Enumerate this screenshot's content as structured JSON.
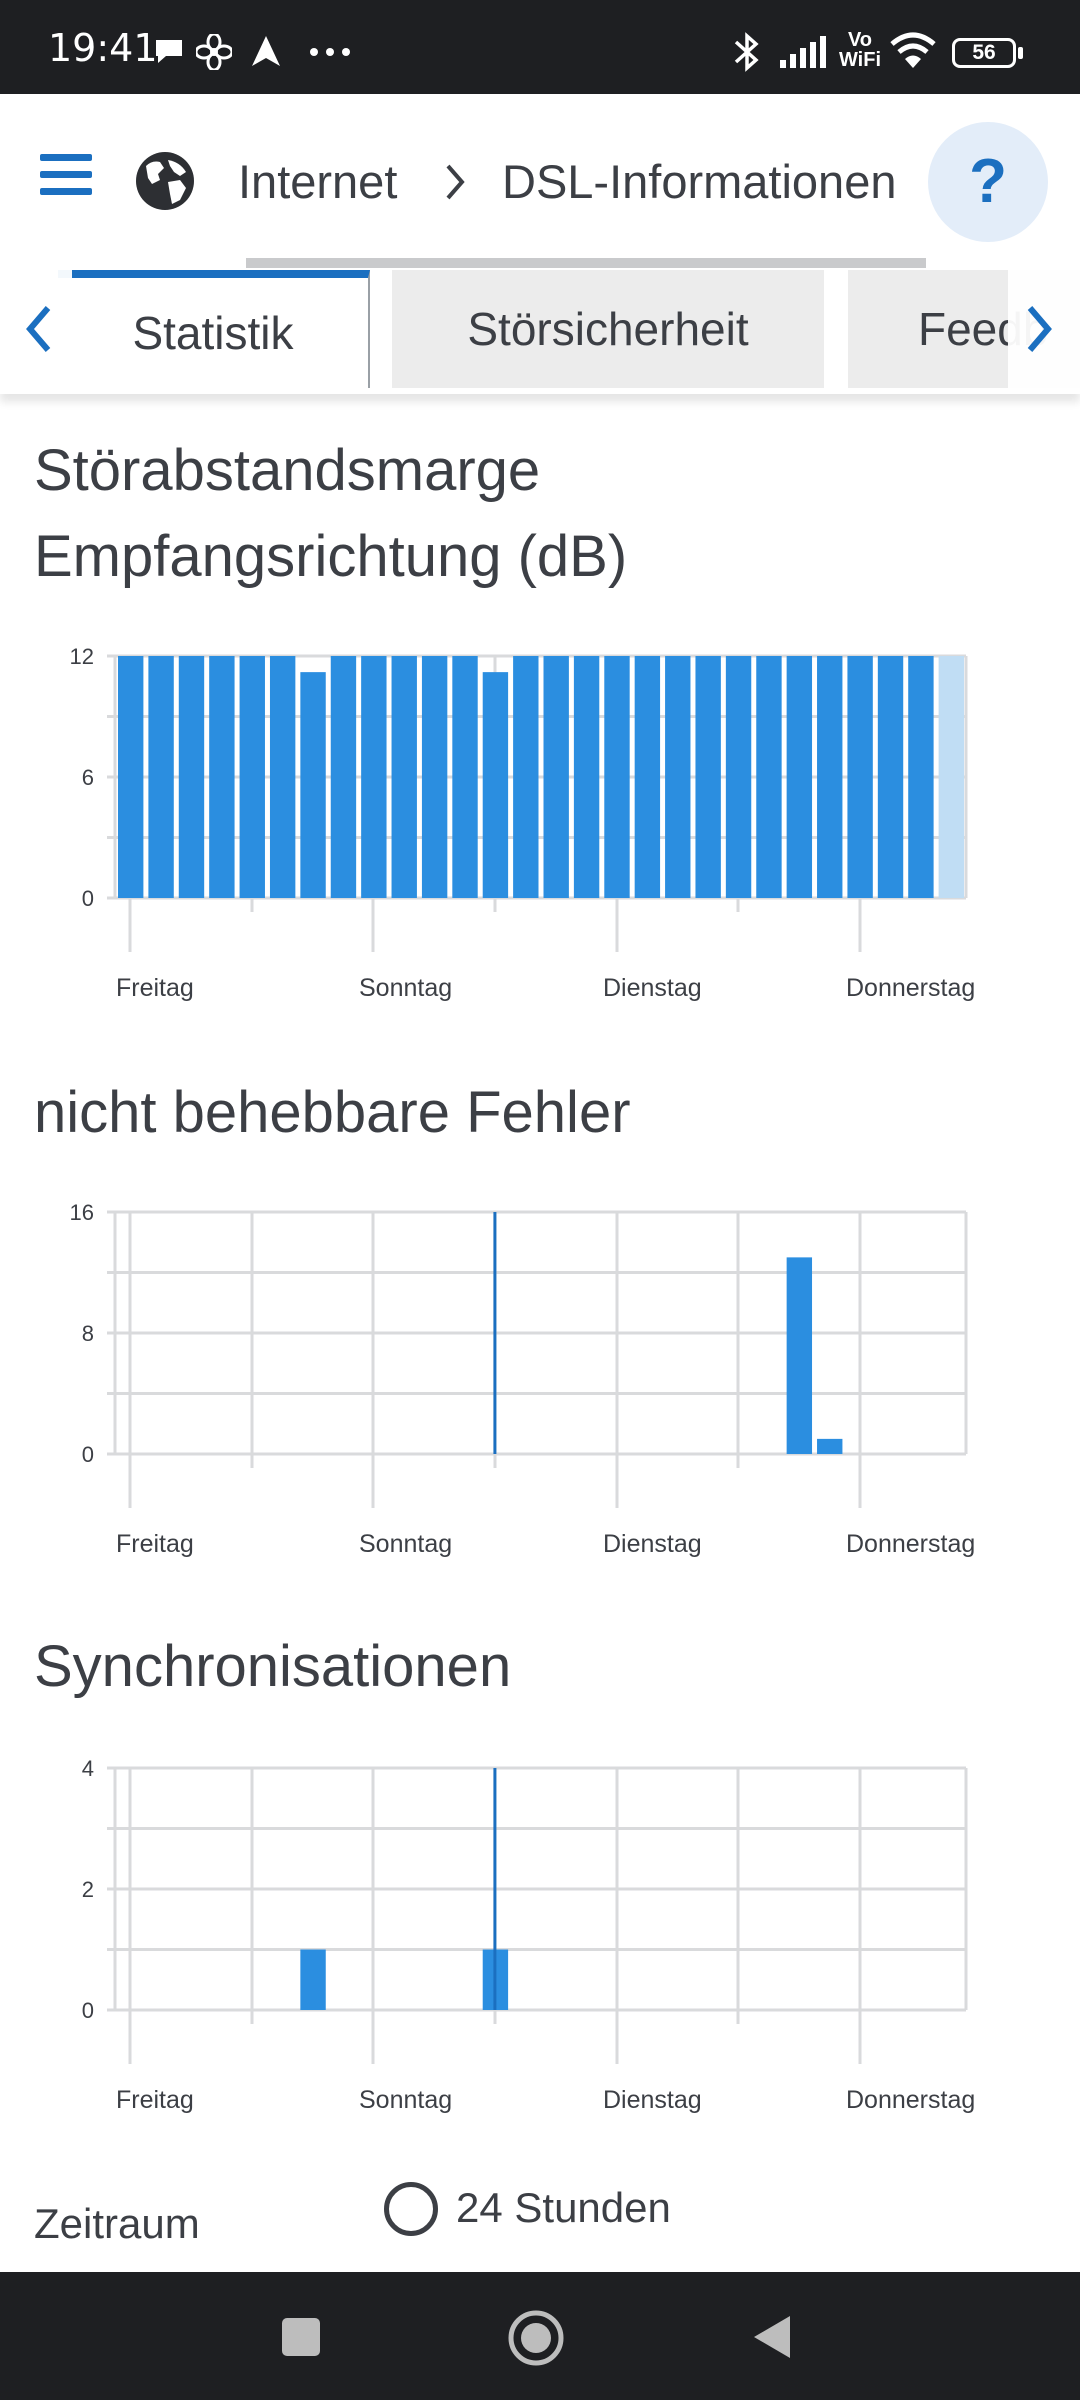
{
  "status_bar": {
    "time": "19:41",
    "battery": "56",
    "network_label_top": "Vo",
    "network_label_bottom": "WiFi"
  },
  "header": {
    "breadcrumb": [
      "Internet",
      "DSL-Informationen"
    ],
    "help_label": "?"
  },
  "tabs": [
    {
      "label": "Statistik",
      "active": true
    },
    {
      "label": "Störsicherheit",
      "active": false
    },
    {
      "label": "Feedb",
      "active": false
    }
  ],
  "charts": [
    {
      "title": "Störabstandsmarge Empfangsrichtung (dB)",
      "y_ticks": [
        "12",
        "6",
        "0"
      ],
      "x_ticks": [
        "Freitag",
        "Sonntag",
        "Dienstag",
        "Donnerstag"
      ]
    },
    {
      "title": "nicht behebbare Fehler",
      "y_ticks": [
        "16",
        "8",
        "0"
      ],
      "x_ticks": [
        "Freitag",
        "Sonntag",
        "Dienstag",
        "Donnerstag"
      ]
    },
    {
      "title": "Synchronisationen",
      "y_ticks": [
        "4",
        "2",
        "0"
      ],
      "x_ticks": [
        "Freitag",
        "Sonntag",
        "Dienstag",
        "Donnerstag"
      ]
    }
  ],
  "chart_data": [
    {
      "type": "bar",
      "title": "Störabstandsmarge Empfangsrichtung (dB)",
      "ylim": [
        0,
        12
      ],
      "x_tick_labels": [
        "Freitag",
        "Sonntag",
        "Dienstag",
        "Donnerstag"
      ],
      "values": [
        12,
        12,
        12,
        12,
        12,
        12,
        11.2,
        12,
        12,
        12,
        12,
        12,
        11.2,
        12,
        12,
        12,
        12,
        12,
        12,
        12,
        12,
        12,
        12,
        12,
        12,
        12,
        12,
        12
      ],
      "highlight_last": true,
      "color": "#2b8ee0",
      "highlight_color": "#c0ddf4"
    },
    {
      "type": "bar",
      "title": "nicht behebbare Fehler",
      "ylim": [
        0,
        16
      ],
      "x_tick_labels": [
        "Freitag",
        "Sonntag",
        "Dienstag",
        "Donnerstag"
      ],
      "bars": [
        {
          "slot": 22,
          "value": 13
        },
        {
          "slot": 23,
          "value": 1
        }
      ],
      "marker_slot": 12,
      "color": "#2b8ee0"
    },
    {
      "type": "bar",
      "title": "Synchronisationen",
      "ylim": [
        0,
        4
      ],
      "x_tick_labels": [
        "Freitag",
        "Sonntag",
        "Dienstag",
        "Donnerstag"
      ],
      "bars": [
        {
          "slot": 6,
          "value": 1
        },
        {
          "slot": 12,
          "value": 1
        }
      ],
      "marker_slot": 12,
      "color": "#2b8ee0"
    }
  ],
  "period": {
    "label": "Zeitraum",
    "option": "24 Stunden"
  },
  "colors": {
    "accent": "#1b6fc0",
    "bar": "#2b8ee0",
    "text": "#3c3f45",
    "grid": "#d9dadc"
  }
}
